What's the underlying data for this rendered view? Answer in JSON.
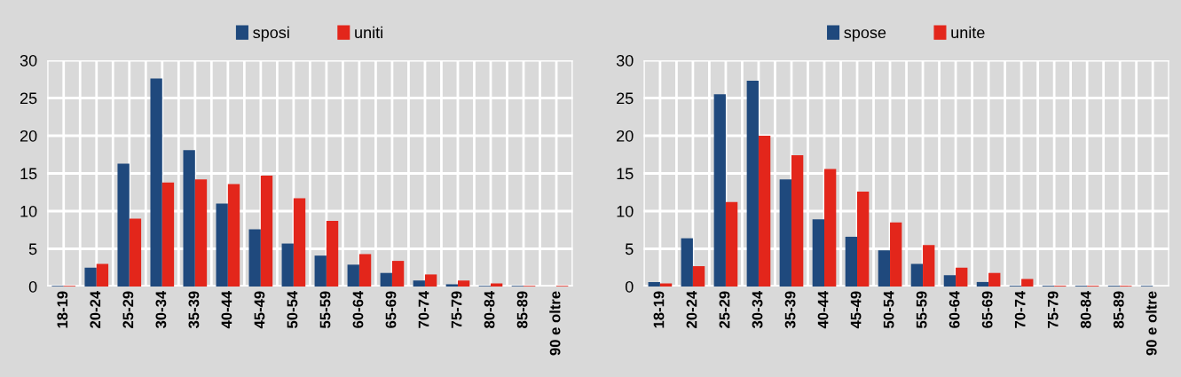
{
  "chart_data": [
    {
      "type": "bar",
      "categories": [
        "18-19",
        "20-24",
        "25-29",
        "30-34",
        "35-39",
        "40-44",
        "45-49",
        "50-54",
        "55-59",
        "60-64",
        "65-69",
        "70-74",
        "75-79",
        "80-84",
        "85-89",
        "90 e oltre"
      ],
      "series": [
        {
          "name": "sposi",
          "color": "#1f497d",
          "values": [
            0.1,
            2.5,
            16.3,
            27.6,
            18.1,
            11.0,
            7.6,
            5.7,
            4.1,
            2.9,
            1.8,
            0.8,
            0.3,
            0.1,
            0.1,
            0.0
          ]
        },
        {
          "name": "uniti",
          "color": "#e3261b",
          "values": [
            0.1,
            3.0,
            9.0,
            13.8,
            14.2,
            13.6,
            14.7,
            11.7,
            8.7,
            4.3,
            3.4,
            1.6,
            0.8,
            0.4,
            0.1,
            0.1
          ]
        }
      ],
      "ylim": [
        0,
        30
      ],
      "yticks": [
        0,
        5,
        10,
        15,
        20,
        25,
        30
      ],
      "grid": true,
      "legend": "top"
    },
    {
      "type": "bar",
      "categories": [
        "18-19",
        "20-24",
        "25-29",
        "30-34",
        "35-39",
        "40-44",
        "45-49",
        "50-54",
        "55-59",
        "60-64",
        "65-69",
        "70-74",
        "75-79",
        "80-84",
        "85-89",
        "90 e oltre"
      ],
      "series": [
        {
          "name": "spose",
          "color": "#1f497d",
          "values": [
            0.6,
            6.4,
            25.5,
            27.3,
            14.2,
            8.9,
            6.6,
            4.8,
            3.0,
            1.5,
            0.6,
            0.1,
            0.1,
            0.1,
            0.1,
            0.1
          ]
        },
        {
          "name": "unite",
          "color": "#e3261b",
          "values": [
            0.4,
            2.7,
            11.2,
            20.0,
            17.4,
            15.6,
            12.6,
            8.5,
            5.5,
            2.5,
            1.8,
            1.0,
            0.1,
            0.1,
            0.1,
            0.0
          ]
        }
      ],
      "ylim": [
        0,
        30
      ],
      "yticks": [
        0,
        5,
        10,
        15,
        20,
        25,
        30
      ],
      "grid": true,
      "legend": "top"
    }
  ]
}
